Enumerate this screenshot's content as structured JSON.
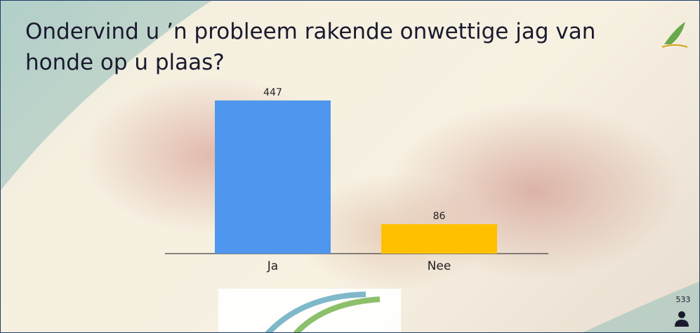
{
  "chart_data": {
    "type": "bar",
    "title": "Ondervind u ’n probleem rakende onwettige jag van honde op u plaas?",
    "categories": [
      "Ja",
      "Nee"
    ],
    "values": [
      447,
      86
    ],
    "colors": [
      "#4f97ee",
      "#ffc000"
    ],
    "participants": 533
  }
}
